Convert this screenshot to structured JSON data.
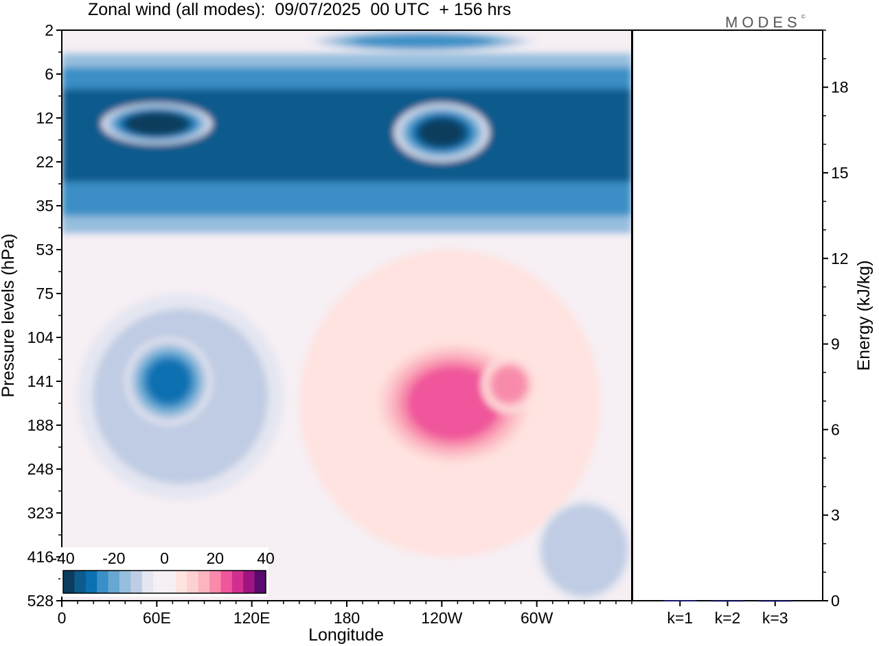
{
  "title": "Zonal wind (all modes):  09/07/2025  00 UTC  + 156 hrs",
  "brand": "MODES",
  "brand_mark": "©",
  "colors": {
    "neg": [
      "#0b3c5d",
      "#0d5a8c",
      "#0b70b0",
      "#3a8fc6",
      "#66a8d2",
      "#96bedd",
      "#c0cce3",
      "#e4e6f1"
    ],
    "zero": "#f6eff4",
    "pos": [
      "#ffe3e0",
      "#fdd0d2",
      "#fbb4c0",
      "#f88bac",
      "#f0569b",
      "#d12f8f",
      "#9e1482",
      "#5a0a6e"
    ]
  },
  "chart_data": [
    {
      "type": "heatmap",
      "title": "Zonal wind (all modes):  09/07/2025  00 UTC  + 156 hrs",
      "xlabel": "Longitude",
      "ylabel": "Pressure levels (hPa)",
      "xticks": [
        "0",
        "60E",
        "120E",
        "180",
        "120W",
        "60W"
      ],
      "xtick_values": [
        0,
        60,
        120,
        180,
        240,
        300
      ],
      "xlim": [
        0,
        360
      ],
      "yticks": [
        "2",
        "6",
        "12",
        "22",
        "35",
        "53",
        "75",
        "104",
        "141",
        "188",
        "248",
        "323",
        "416",
        "528"
      ],
      "colorbar": {
        "ticks": [
          "-40",
          "-20",
          "0",
          "20",
          "40"
        ],
        "range": [
          -40,
          40
        ]
      },
      "features": [
        {
          "name": "stratospheric easterly band",
          "lon": [
            0,
            360
          ],
          "level": [
            6,
            35
          ],
          "value": -32
        },
        {
          "name": "easterly maximum",
          "lon": [
            210,
            270
          ],
          "level": [
            10,
            22
          ],
          "value": -40
        },
        {
          "name": "easterly jet core",
          "lon": [
            40,
            95
          ],
          "level": [
            104,
            188
          ],
          "value": -28
        },
        {
          "name": "westerly jet core",
          "lon": [
            195,
            300
          ],
          "level": [
            104,
            248
          ],
          "value": 22
        }
      ]
    },
    {
      "type": "bar",
      "ylabel": "Energy (kJ/kg)",
      "categories": [
        "k=1",
        "k=2",
        "k=3"
      ],
      "values": [
        0.02,
        0.005,
        0.004
      ],
      "yticks": [
        "0",
        "3",
        "6",
        "9",
        "12",
        "15",
        "18"
      ],
      "ylim": [
        0,
        20
      ],
      "color": "#1a1a8c"
    }
  ]
}
